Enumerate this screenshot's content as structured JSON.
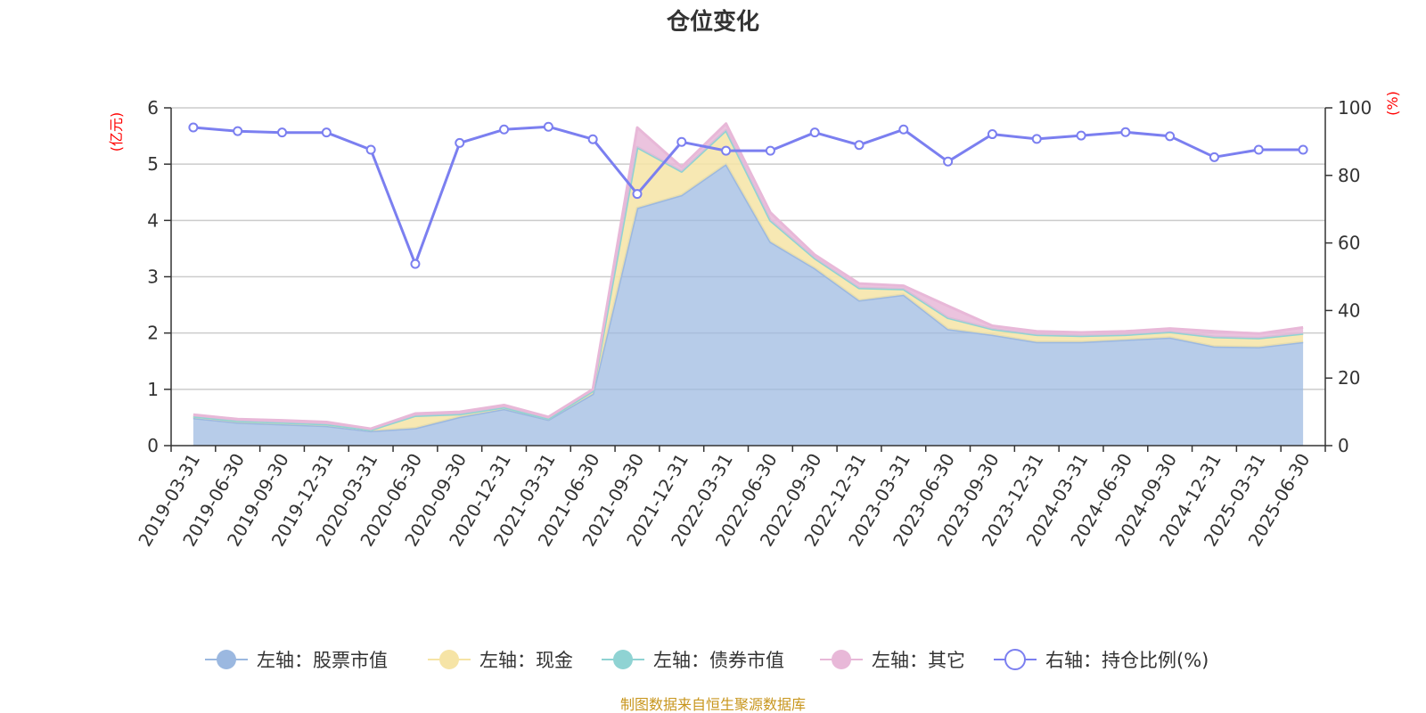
{
  "chart_data": {
    "type": "area",
    "title": "仓位变化",
    "left_axis_unit": "(亿元)",
    "right_axis_unit": "(%)",
    "left_ylim": [
      0,
      6
    ],
    "left_ticks": [
      "0",
      "1",
      "2",
      "3",
      "4",
      "5",
      "6"
    ],
    "right_ylim": [
      0,
      100
    ],
    "right_ticks": [
      "0",
      "20",
      "40",
      "60",
      "80",
      "100"
    ],
    "grid": true,
    "legend_position": "bottom",
    "source": "制图数据来自恒生聚源数据库",
    "categories": [
      "2019-03-31",
      "2019-06-30",
      "2019-09-30",
      "2019-12-31",
      "2020-03-31",
      "2020-06-30",
      "2020-09-30",
      "2020-12-31",
      "2021-03-31",
      "2021-06-30",
      "2021-09-30",
      "2021-12-31",
      "2022-03-31",
      "2022-06-30",
      "2022-09-30",
      "2022-12-31",
      "2023-03-31",
      "2023-06-30",
      "2023-09-30",
      "2023-12-31",
      "2024-03-31",
      "2024-06-30",
      "2024-09-30",
      "2024-12-31",
      "2025-03-31",
      "2025-06-30"
    ],
    "series": [
      {
        "name": "左轴：股票市值",
        "axis": "left",
        "color": "#9bb8e0",
        "values": [
          0.49,
          0.41,
          0.38,
          0.35,
          0.26,
          0.31,
          0.51,
          0.65,
          0.46,
          0.92,
          4.22,
          4.45,
          5.0,
          3.62,
          3.15,
          2.58,
          2.68,
          2.07,
          1.97,
          1.84,
          1.84,
          1.88,
          1.92,
          1.76,
          1.75,
          1.84
        ]
      },
      {
        "name": "左轴：现金",
        "axis": "left",
        "color": "#f6e4a6",
        "values": [
          0.03,
          0.03,
          0.03,
          0.03,
          0.02,
          0.22,
          0.05,
          0.03,
          0.02,
          0.05,
          1.08,
          0.42,
          0.6,
          0.38,
          0.18,
          0.22,
          0.1,
          0.2,
          0.1,
          0.13,
          0.11,
          0.09,
          0.1,
          0.17,
          0.16,
          0.15
        ]
      },
      {
        "name": "左轴：债券市值",
        "axis": "left",
        "color": "#8fd3d3",
        "values": [
          0,
          0,
          0,
          0,
          0,
          0,
          0,
          0,
          0,
          0,
          0,
          0,
          0,
          0,
          0,
          0,
          0,
          0,
          0,
          0,
          0,
          0,
          0,
          0,
          0,
          0
        ]
      },
      {
        "name": "左轴：其它",
        "axis": "left",
        "color": "#e8b8d8",
        "values": [
          0.03,
          0.03,
          0.04,
          0.04,
          0.02,
          0.04,
          0.04,
          0.04,
          0.03,
          0.03,
          0.35,
          0.08,
          0.12,
          0.14,
          0.06,
          0.08,
          0.06,
          0.21,
          0.06,
          0.06,
          0.06,
          0.06,
          0.06,
          0.1,
          0.08,
          0.11
        ]
      },
      {
        "name": "右轴：持仓比例(%)",
        "axis": "right",
        "color": "#7b7ff0",
        "values": [
          94.2,
          93.1,
          92.7,
          92.7,
          87.6,
          53.8,
          89.6,
          93.6,
          94.4,
          90.7,
          74.5,
          89.9,
          87.3,
          87.3,
          92.7,
          89.0,
          93.6,
          84.1,
          92.2,
          90.8,
          91.8,
          92.8,
          91.6,
          85.4,
          87.6,
          87.6
        ]
      }
    ]
  }
}
